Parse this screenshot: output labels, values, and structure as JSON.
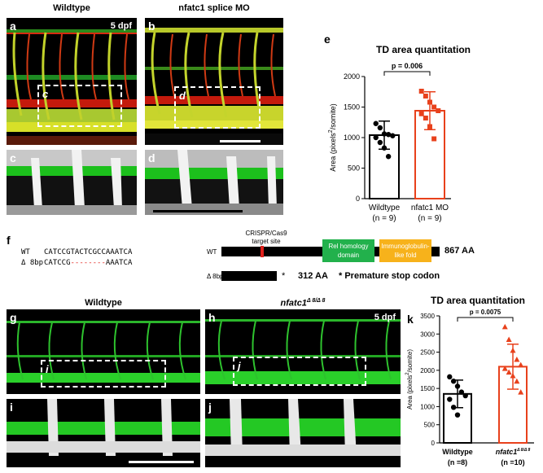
{
  "top": {
    "header_wt": "Wildtype",
    "header_mo": "nfatc1 splice MO",
    "dpf": "5 dpf",
    "letters": {
      "a": "a",
      "b": "b",
      "c": "c",
      "d": "d",
      "e": "e"
    },
    "box_a": "c",
    "box_b": "d"
  },
  "mid": {
    "letter": "f",
    "seq_wt_label": "WT",
    "seq_wt": "CATCCGTACTCGCCAAATCA",
    "seq_mut_label": "Δ 8bp",
    "seq_mut_prefix": "CATCCG",
    "seq_mut_dashes": "--------",
    "seq_mut_suffix": "AAATCA",
    "crispr_label_1": "CRISPR/Cas9",
    "crispr_label_2": "target site",
    "domain_wt_label": "WT",
    "domain_rel_1": "Rel homology",
    "domain_rel_2": "domain",
    "domain_ig_1": "Immunoglobulin-",
    "domain_ig_2": "like fold",
    "wt_length": "867 AA",
    "mut_label": "Δ 8bp",
    "mut_star": "*",
    "mut_length": "312 AA",
    "stop_note": "* Premature stop codon",
    "colors": {
      "rel": "#22b14c",
      "ig": "#f7b21b",
      "site": "#e0201b"
    }
  },
  "bottom": {
    "header_wt": "Wildtype",
    "header_mut": "nfatc1",
    "header_mut_sup": "Δ 8/Δ 8",
    "dpf": "5 dpf",
    "letters": {
      "g": "g",
      "h": "h",
      "i": "i",
      "j": "j",
      "k": "k"
    },
    "box_g": "i",
    "box_h": "j"
  },
  "chart_data": [
    {
      "type": "bar",
      "panel": "e",
      "title": "TD area quantitation",
      "ylabel": "Area (pixels²/somite)",
      "ylim": [
        0,
        2000
      ],
      "yticks": [
        0,
        500,
        1000,
        1500,
        2000
      ],
      "categories": [
        "Wildtype",
        "nfatc1 MO"
      ],
      "category_sub": [
        "(n = 9)",
        "(n = 9)"
      ],
      "means": [
        1040,
        1440
      ],
      "sd": [
        230,
        310
      ],
      "points": [
        [
          1230,
          1160,
          1060,
          1050,
          1030,
          1000,
          920,
          830,
          690
        ],
        [
          1760,
          1680,
          1580,
          1500,
          1440,
          1390,
          1320,
          1180,
          980
        ]
      ],
      "colors": [
        "#000000",
        "#e8411c"
      ],
      "annotation": "p = 0.006"
    },
    {
      "type": "bar",
      "panel": "k",
      "title": "TD area quantitation",
      "ylabel": "Area (pixels²/somite)",
      "ylim": [
        0,
        3500
      ],
      "yticks": [
        0,
        500,
        1000,
        1500,
        2000,
        2500,
        3000,
        3500
      ],
      "categories": [
        "Wildtype",
        "nfatc1"
      ],
      "category_sup": [
        "",
        "Δ 8/Δ 8"
      ],
      "category_sub": [
        "(n =8)",
        "(n =10)"
      ],
      "means": [
        1350,
        2100
      ],
      "sd": [
        380,
        620
      ],
      "points": [
        [
          1820,
          1700,
          1560,
          1400,
          1300,
          1200,
          980,
          770
        ],
        [
          3200,
          2850,
          2550,
          2300,
          2150,
          2050,
          1950,
          1850,
          1700,
          1400
        ]
      ],
      "colors": [
        "#000000",
        "#e8411c"
      ],
      "annotation": "p = 0.0075"
    }
  ]
}
